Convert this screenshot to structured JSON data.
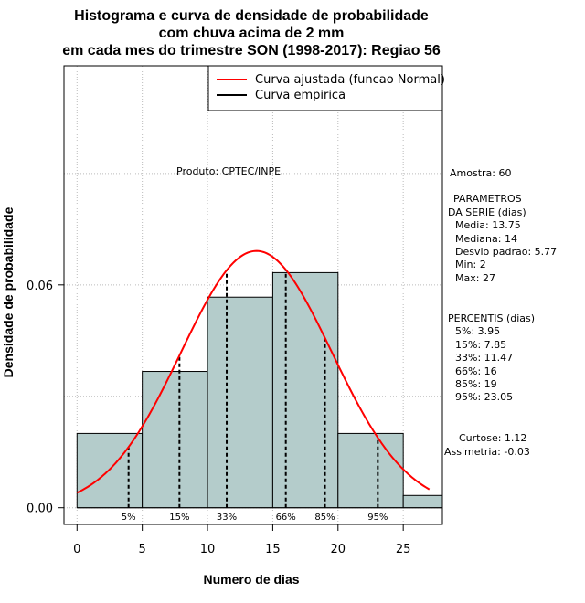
{
  "chart_data": {
    "type": "bar",
    "title_lines": [
      "Histograma e curva de densidade de probabilidade",
      "com chuva acima de 2 mm",
      "em cada mes do trimestre SON (1998-2017): Regiao 56"
    ],
    "xlabel": "Numero de dias",
    "ylabel": "Densidade de probabilidade",
    "xlim": [
      -1,
      28
    ],
    "ylim": [
      -0.0045,
      0.119
    ],
    "x_ticks": [
      0,
      5,
      10,
      15,
      20,
      25
    ],
    "x_tick_labels": [
      "0",
      "5",
      "10",
      "15",
      "20",
      "25"
    ],
    "y_ticks": [
      0.0,
      0.06
    ],
    "y_tick_labels": [
      "0.00",
      "0.06"
    ],
    "grid": true,
    "bins": [
      {
        "start": 0,
        "end": 5,
        "density": 0.02
      },
      {
        "start": 5,
        "end": 10,
        "density": 0.0367
      },
      {
        "start": 10,
        "end": 15,
        "density": 0.0567
      },
      {
        "start": 15,
        "end": 20,
        "density": 0.0633
      },
      {
        "start": 20,
        "end": 25,
        "density": 0.02
      },
      {
        "start": 25,
        "end": 28,
        "density": 0.0033
      }
    ],
    "fitted_curve": {
      "name": "Curva ajustada (funcao Normal)",
      "mean": 13.75,
      "sd": 5.77,
      "x_range": [
        0,
        27
      ],
      "color": "#ff0000"
    },
    "empirical_curve": {
      "name": "Curva empirica",
      "color": "#000000"
    },
    "legend": {
      "position": "top-right",
      "entries": [
        "Curva ajustada (funcao Normal)",
        "Curva empirica"
      ]
    },
    "percentile_lines": [
      {
        "label": "5%",
        "x": 3.95
      },
      {
        "label": "15%",
        "x": 7.85
      },
      {
        "label": "33%",
        "x": 11.47
      },
      {
        "label": "66%",
        "x": 16
      },
      {
        "label": "85%",
        "x": 19
      },
      {
        "label": "95%",
        "x": 23.05
      }
    ],
    "annotation_product": "Produto: CPTEC/INPE",
    "stats_lines": [
      "Amostra: 60",
      "PARAMETROS",
      "DA SERIE (dias)",
      "Media: 13.75",
      "Mediana: 14",
      "Desvio padrao: 5.77",
      "Min: 2",
      "Max: 27",
      "PERCENTIS (dias)",
      "5%: 3.95",
      "15%: 7.85",
      "33%: 11.47",
      "66%: 16",
      "85%: 19",
      "95%: 23.05",
      "Curtose: 1.12",
      "Assimetria: -0.03"
    ],
    "colors": {
      "bar_fill": "#b4cccb",
      "bar_stroke": "#000000",
      "grid": "#bbbbbb"
    }
  }
}
